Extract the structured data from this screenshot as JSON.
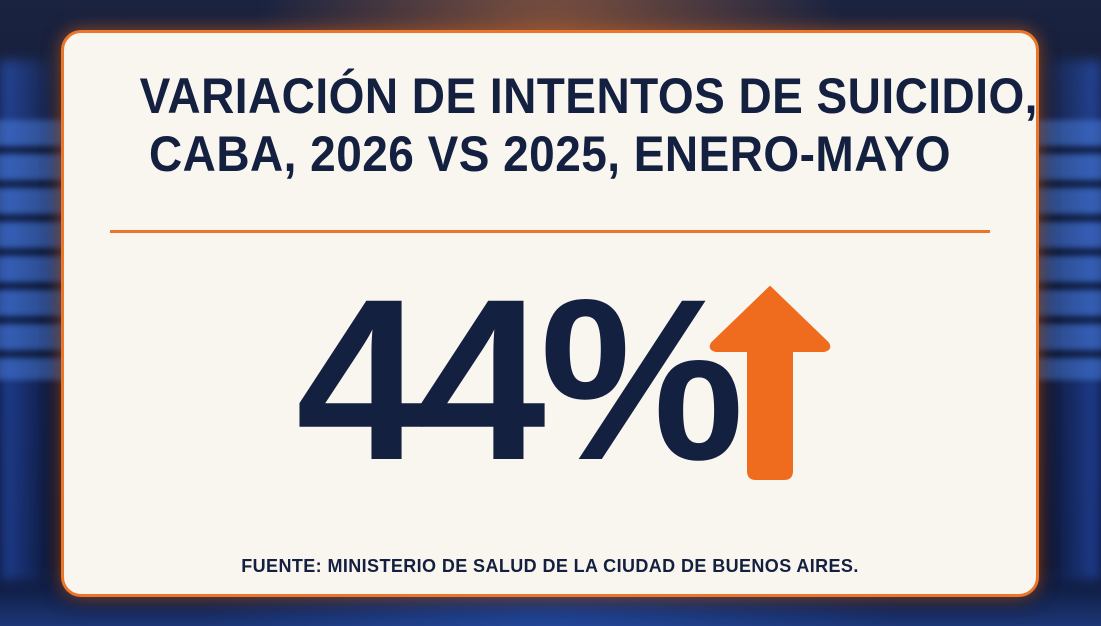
{
  "card": {
    "title_line1": "VARIACIÓN DE INTENTOS DE SUICIDIO,",
    "title_line2": "CABA, 2026 VS 2025, ENERO-MAYO",
    "value": "44%",
    "value_number": 44,
    "direction_icon": "arrow-up-icon",
    "source": "FUENTE: MINISTERIO DE SALUD DE LA CIUDAD DE BUENOS AIRES."
  },
  "colors": {
    "navy": "#14203f",
    "accent": "#e9762a",
    "card_background": "#f9f5ef"
  }
}
